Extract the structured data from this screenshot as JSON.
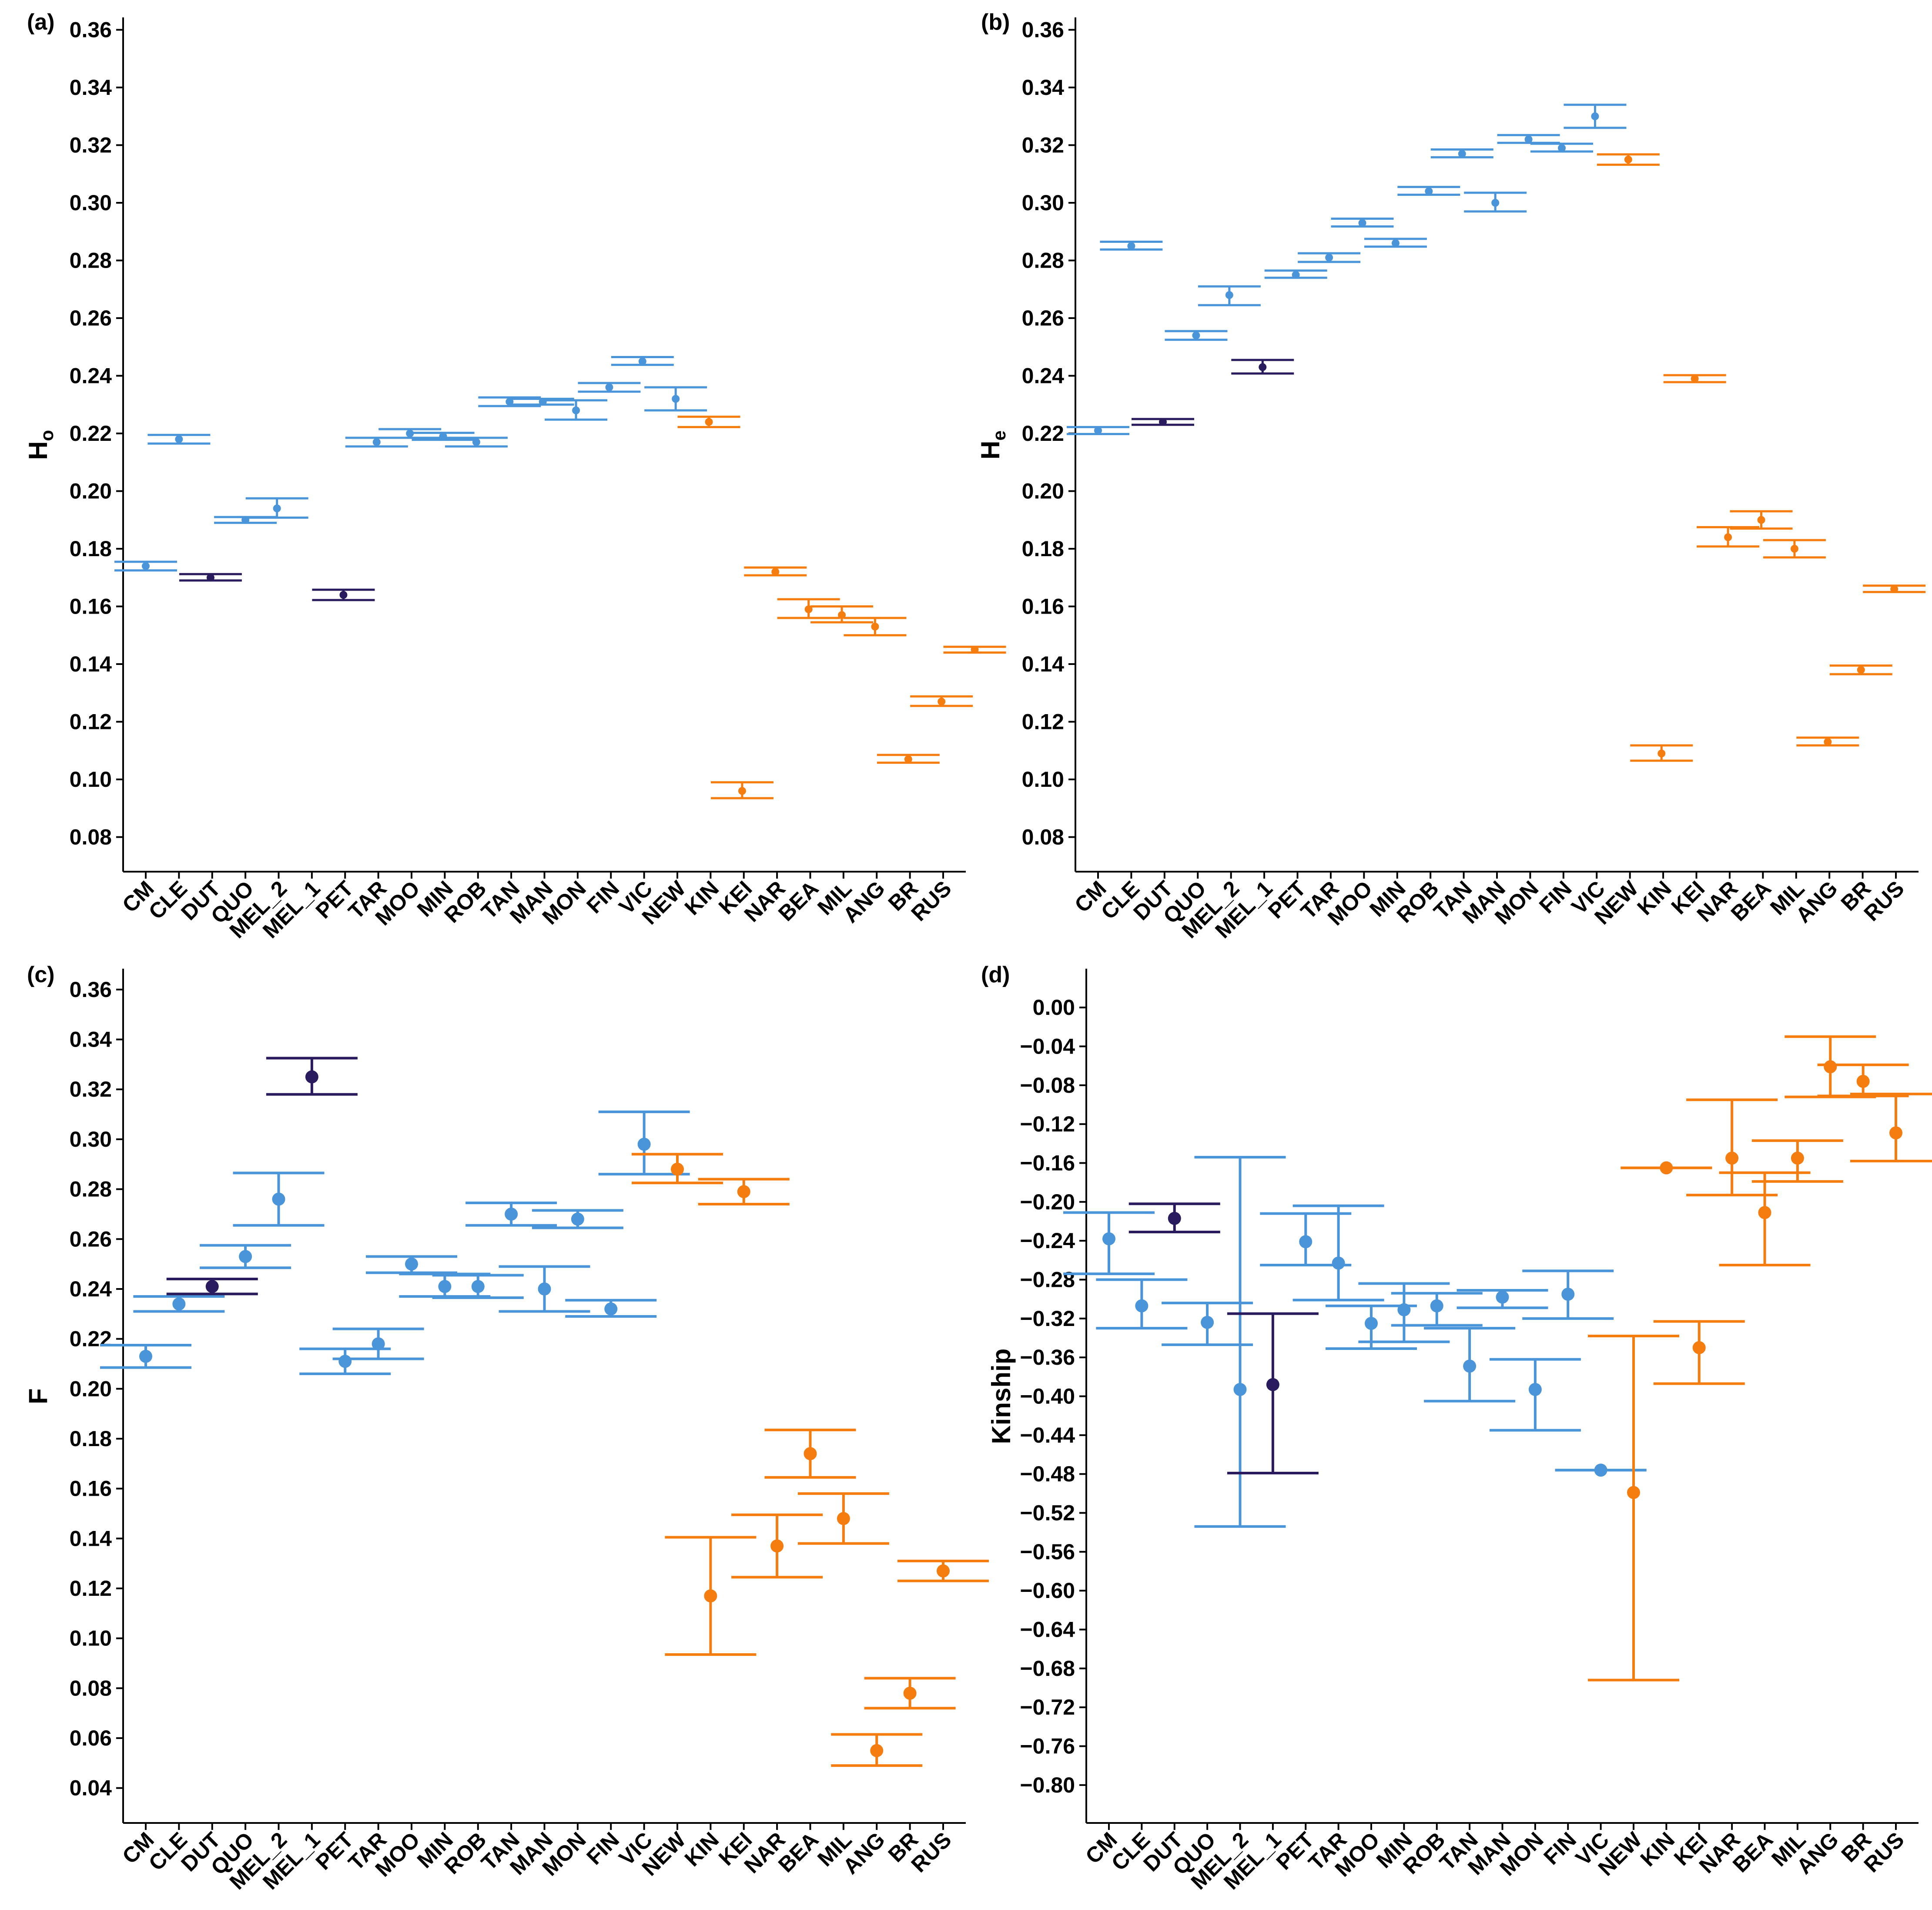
{
  "colors": {
    "blue": "#4a95d9",
    "navy": "#2a1a5e",
    "orange": "#f57c0f",
    "axis": "#000000"
  },
  "chart_data": [
    {
      "type": "scatter",
      "panel_label": "(a)",
      "ylabel": "H",
      "ylabel_sub": "o",
      "ylim": [
        0.068,
        0.364
      ],
      "yticks": [
        0.08,
        0.1,
        0.12,
        0.14,
        0.16,
        0.18,
        0.2,
        0.22,
        0.24,
        0.26,
        0.28,
        0.3,
        0.32,
        0.34,
        0.36
      ],
      "tick_format": "%.2f",
      "marker": "small",
      "categories": [
        "CM",
        "CLE",
        "DUT",
        "QUO",
        "MEL_2",
        "MEL_1",
        "PET",
        "TAR",
        "MOO",
        "MIN",
        "ROB",
        "TAN",
        "MAN",
        "MON",
        "FIN",
        "VIC",
        "NEW",
        "KIN",
        "KEI",
        "NAR",
        "BEA",
        "MIL",
        "ANG",
        "BR",
        "RUS"
      ],
      "series": [
        {
          "x": 0.0,
          "y": 0.174,
          "lo": 0.1725,
          "hi": 0.1755,
          "group": "blue"
        },
        {
          "x": 1.0,
          "y": 0.218,
          "lo": 0.2165,
          "hi": 0.2195,
          "group": "blue"
        },
        {
          "x": 1.95,
          "y": 0.17,
          "lo": 0.169,
          "hi": 0.1712,
          "group": "navy"
        },
        {
          "x": 3.0,
          "y": 0.19,
          "lo": 0.189,
          "hi": 0.191,
          "group": "blue"
        },
        {
          "x": 3.95,
          "y": 0.194,
          "lo": 0.1908,
          "hi": 0.1975,
          "group": "blue"
        },
        {
          "x": 5.95,
          "y": 0.164,
          "lo": 0.1622,
          "hi": 0.1658,
          "group": "navy"
        },
        {
          "x": 6.95,
          "y": 0.217,
          "lo": 0.2155,
          "hi": 0.2185,
          "group": "blue"
        },
        {
          "x": 7.95,
          "y": 0.22,
          "lo": 0.2185,
          "hi": 0.2215,
          "group": "blue"
        },
        {
          "x": 8.95,
          "y": 0.219,
          "lo": 0.2178,
          "hi": 0.2202,
          "group": "blue"
        },
        {
          "x": 9.95,
          "y": 0.217,
          "lo": 0.2155,
          "hi": 0.2185,
          "group": "blue"
        },
        {
          "x": 10.95,
          "y": 0.231,
          "lo": 0.2295,
          "hi": 0.2325,
          "group": "blue"
        },
        {
          "x": 11.95,
          "y": 0.231,
          "lo": 0.23,
          "hi": 0.232,
          "group": "blue"
        },
        {
          "x": 12.95,
          "y": 0.228,
          "lo": 0.2248,
          "hi": 0.2315,
          "group": "blue"
        },
        {
          "x": 13.95,
          "y": 0.236,
          "lo": 0.2345,
          "hi": 0.2375,
          "group": "blue"
        },
        {
          "x": 14.95,
          "y": 0.245,
          "lo": 0.2438,
          "hi": 0.2465,
          "group": "blue"
        },
        {
          "x": 15.95,
          "y": 0.232,
          "lo": 0.228,
          "hi": 0.236,
          "group": "blue"
        },
        {
          "x": 16.95,
          "y": 0.224,
          "lo": 0.2222,
          "hi": 0.2258,
          "group": "orange"
        },
        {
          "x": 17.95,
          "y": 0.096,
          "lo": 0.0935,
          "hi": 0.099,
          "group": "orange"
        },
        {
          "x": 18.95,
          "y": 0.172,
          "lo": 0.1708,
          "hi": 0.1735,
          "group": "orange"
        },
        {
          "x": 19.95,
          "y": 0.159,
          "lo": 0.156,
          "hi": 0.1625,
          "group": "orange"
        },
        {
          "x": 20.95,
          "y": 0.157,
          "lo": 0.1545,
          "hi": 0.16,
          "group": "orange"
        },
        {
          "x": 21.95,
          "y": 0.153,
          "lo": 0.15,
          "hi": 0.156,
          "group": "orange"
        },
        {
          "x": 22.95,
          "y": 0.107,
          "lo": 0.1058,
          "hi": 0.1085,
          "group": "orange"
        },
        {
          "x": 23.95,
          "y": 0.127,
          "lo": 0.1255,
          "hi": 0.1288,
          "group": "orange"
        },
        {
          "x": 24.95,
          "y": 0.145,
          "lo": 0.144,
          "hi": 0.146,
          "group": "orange"
        }
      ]
    },
    {
      "type": "scatter",
      "panel_label": "(b)",
      "ylabel": "H",
      "ylabel_sub": "e",
      "ylim": [
        0.068,
        0.364
      ],
      "yticks": [
        0.08,
        0.1,
        0.12,
        0.14,
        0.16,
        0.18,
        0.2,
        0.22,
        0.24,
        0.26,
        0.28,
        0.3,
        0.32,
        0.34,
        0.36
      ],
      "tick_format": "%.2f",
      "marker": "small",
      "categories": [
        "CM",
        "CLE",
        "DUT",
        "QUO",
        "MEL_2",
        "MEL_1",
        "PET",
        "TAR",
        "MOO",
        "MIN",
        "ROB",
        "TAN",
        "MAN",
        "MON",
        "FIN",
        "VIC",
        "NEW",
        "KIN",
        "KEI",
        "NAR",
        "BEA",
        "MIL",
        "ANG",
        "BR",
        "RUS"
      ],
      "series": [
        {
          "x": 0.0,
          "y": 0.221,
          "lo": 0.2198,
          "hi": 0.2222,
          "group": "blue"
        },
        {
          "x": 1.0,
          "y": 0.285,
          "lo": 0.2838,
          "hi": 0.2865,
          "group": "blue"
        },
        {
          "x": 1.95,
          "y": 0.224,
          "lo": 0.223,
          "hi": 0.225,
          "group": "navy"
        },
        {
          "x": 2.95,
          "y": 0.254,
          "lo": 0.2525,
          "hi": 0.2555,
          "group": "blue"
        },
        {
          "x": 3.95,
          "y": 0.268,
          "lo": 0.2645,
          "hi": 0.271,
          "group": "blue"
        },
        {
          "x": 4.95,
          "y": 0.243,
          "lo": 0.2408,
          "hi": 0.2455,
          "group": "navy"
        },
        {
          "x": 5.95,
          "y": 0.275,
          "lo": 0.274,
          "hi": 0.2765,
          "group": "blue"
        },
        {
          "x": 6.95,
          "y": 0.281,
          "lo": 0.2795,
          "hi": 0.2825,
          "group": "blue"
        },
        {
          "x": 7.95,
          "y": 0.293,
          "lo": 0.2918,
          "hi": 0.2945,
          "group": "blue"
        },
        {
          "x": 8.95,
          "y": 0.286,
          "lo": 0.2848,
          "hi": 0.2875,
          "group": "blue"
        },
        {
          "x": 9.95,
          "y": 0.304,
          "lo": 0.3028,
          "hi": 0.3055,
          "group": "blue"
        },
        {
          "x": 10.95,
          "y": 0.317,
          "lo": 0.3158,
          "hi": 0.3185,
          "group": "blue"
        },
        {
          "x": 11.95,
          "y": 0.3,
          "lo": 0.297,
          "hi": 0.3035,
          "group": "blue"
        },
        {
          "x": 12.95,
          "y": 0.322,
          "lo": 0.3208,
          "hi": 0.3235,
          "group": "blue"
        },
        {
          "x": 13.95,
          "y": 0.319,
          "lo": 0.3178,
          "hi": 0.3205,
          "group": "blue"
        },
        {
          "x": 14.95,
          "y": 0.33,
          "lo": 0.326,
          "hi": 0.334,
          "group": "blue"
        },
        {
          "x": 15.95,
          "y": 0.315,
          "lo": 0.3132,
          "hi": 0.3168,
          "group": "orange"
        },
        {
          "x": 16.95,
          "y": 0.109,
          "lo": 0.1065,
          "hi": 0.1118,
          "group": "orange"
        },
        {
          "x": 17.95,
          "y": 0.239,
          "lo": 0.2378,
          "hi": 0.2402,
          "group": "orange"
        },
        {
          "x": 18.95,
          "y": 0.184,
          "lo": 0.1808,
          "hi": 0.1875,
          "group": "orange"
        },
        {
          "x": 19.95,
          "y": 0.19,
          "lo": 0.187,
          "hi": 0.193,
          "group": "orange"
        },
        {
          "x": 20.95,
          "y": 0.18,
          "lo": 0.177,
          "hi": 0.183,
          "group": "orange"
        },
        {
          "x": 21.95,
          "y": 0.113,
          "lo": 0.1118,
          "hi": 0.1145,
          "group": "orange"
        },
        {
          "x": 22.95,
          "y": 0.138,
          "lo": 0.1365,
          "hi": 0.1395,
          "group": "orange"
        },
        {
          "x": 23.95,
          "y": 0.166,
          "lo": 0.165,
          "hi": 0.1672,
          "group": "orange"
        }
      ]
    },
    {
      "type": "scatter",
      "panel_label": "(c)",
      "ylabel": "F",
      "ylabel_sub": "",
      "ylim": [
        0.026,
        0.368
      ],
      "yticks": [
        0.04,
        0.06,
        0.08,
        0.1,
        0.12,
        0.14,
        0.16,
        0.18,
        0.2,
        0.22,
        0.24,
        0.26,
        0.28,
        0.3,
        0.32,
        0.34,
        0.36
      ],
      "tick_format": "%.2f",
      "marker": "large",
      "categories": [
        "CM",
        "CLE",
        "DUT",
        "QUO",
        "MEL_2",
        "MEL_1",
        "PET",
        "TAR",
        "MOO",
        "MIN",
        "ROB",
        "TAN",
        "MAN",
        "MON",
        "FIN",
        "VIC",
        "NEW",
        "KIN",
        "KEI",
        "NAR",
        "BEA",
        "MIL",
        "ANG",
        "BR",
        "RUS"
      ],
      "series": [
        {
          "x": 0.0,
          "y": 0.213,
          "lo": 0.2085,
          "hi": 0.2175,
          "group": "blue"
        },
        {
          "x": 1.0,
          "y": 0.234,
          "lo": 0.231,
          "hi": 0.237,
          "group": "blue"
        },
        {
          "x": 2.0,
          "y": 0.241,
          "lo": 0.238,
          "hi": 0.244,
          "group": "navy"
        },
        {
          "x": 3.0,
          "y": 0.253,
          "lo": 0.2485,
          "hi": 0.2575,
          "group": "blue"
        },
        {
          "x": 4.0,
          "y": 0.276,
          "lo": 0.2655,
          "hi": 0.2865,
          "group": "blue"
        },
        {
          "x": 5.0,
          "y": 0.325,
          "lo": 0.318,
          "hi": 0.3325,
          "group": "navy"
        },
        {
          "x": 6.0,
          "y": 0.211,
          "lo": 0.206,
          "hi": 0.216,
          "group": "blue"
        },
        {
          "x": 7.0,
          "y": 0.218,
          "lo": 0.212,
          "hi": 0.224,
          "group": "blue"
        },
        {
          "x": 8.0,
          "y": 0.25,
          "lo": 0.2465,
          "hi": 0.253,
          "group": "blue"
        },
        {
          "x": 9.0,
          "y": 0.241,
          "lo": 0.237,
          "hi": 0.246,
          "group": "blue"
        },
        {
          "x": 10.0,
          "y": 0.241,
          "lo": 0.2365,
          "hi": 0.2455,
          "group": "blue"
        },
        {
          "x": 11.0,
          "y": 0.27,
          "lo": 0.2655,
          "hi": 0.2745,
          "group": "blue"
        },
        {
          "x": 12.0,
          "y": 0.24,
          "lo": 0.231,
          "hi": 0.249,
          "group": "blue"
        },
        {
          "x": 13.0,
          "y": 0.268,
          "lo": 0.2645,
          "hi": 0.2715,
          "group": "blue"
        },
        {
          "x": 14.0,
          "y": 0.232,
          "lo": 0.229,
          "hi": 0.2355,
          "group": "blue"
        },
        {
          "x": 15.0,
          "y": 0.298,
          "lo": 0.286,
          "hi": 0.311,
          "group": "blue"
        },
        {
          "x": 16.0,
          "y": 0.288,
          "lo": 0.2825,
          "hi": 0.294,
          "group": "orange"
        },
        {
          "x": 17.0,
          "y": 0.117,
          "lo": 0.0935,
          "hi": 0.1405,
          "group": "orange"
        },
        {
          "x": 18.0,
          "y": 0.279,
          "lo": 0.274,
          "hi": 0.284,
          "group": "orange"
        },
        {
          "x": 19.0,
          "y": 0.137,
          "lo": 0.1245,
          "hi": 0.1495,
          "group": "orange"
        },
        {
          "x": 20.0,
          "y": 0.174,
          "lo": 0.1645,
          "hi": 0.1835,
          "group": "orange"
        },
        {
          "x": 21.0,
          "y": 0.148,
          "lo": 0.138,
          "hi": 0.158,
          "group": "orange"
        },
        {
          "x": 22.0,
          "y": 0.055,
          "lo": 0.049,
          "hi": 0.0615,
          "group": "orange"
        },
        {
          "x": 23.0,
          "y": 0.078,
          "lo": 0.072,
          "hi": 0.084,
          "group": "orange"
        },
        {
          "x": 24.0,
          "y": 0.127,
          "lo": 0.123,
          "hi": 0.131,
          "group": "orange"
        }
      ]
    },
    {
      "type": "scatter",
      "panel_label": "(d)",
      "ylabel": "Kinship",
      "ylabel_sub": "",
      "ylim": [
        -0.839,
        0.039
      ],
      "yticks": [
        0.0,
        -0.04,
        -0.08,
        -0.12,
        -0.16,
        -0.2,
        -0.24,
        -0.28,
        -0.32,
        -0.36,
        -0.4,
        -0.44,
        -0.48,
        -0.52,
        -0.56,
        -0.6,
        -0.64,
        -0.68,
        -0.72,
        -0.76,
        -0.8
      ],
      "tick_format": "%.2f",
      "marker": "large",
      "categories": [
        "CM",
        "CLE",
        "DUT",
        "QUO",
        "MEL_2",
        "MEL_1",
        "PET",
        "TAR",
        "MOO",
        "MIN",
        "ROB",
        "TAN",
        "MAN",
        "MON",
        "FIN",
        "VIC",
        "NEW",
        "KIN",
        "KEI",
        "NAR",
        "BEA",
        "MIL",
        "ANG",
        "BR",
        "RUS"
      ],
      "series": [
        {
          "x": 0.0,
          "y": -0.238,
          "lo": -0.274,
          "hi": -0.211,
          "group": "blue"
        },
        {
          "x": 1.0,
          "y": -0.307,
          "lo": -0.33,
          "hi": -0.28,
          "group": "blue"
        },
        {
          "x": 2.0,
          "y": -0.217,
          "lo": -0.231,
          "hi": -0.202,
          "group": "navy"
        },
        {
          "x": 3.0,
          "y": -0.324,
          "lo": -0.347,
          "hi": -0.304,
          "group": "blue"
        },
        {
          "x": 4.0,
          "y": -0.393,
          "lo": -0.534,
          "hi": -0.154,
          "group": "blue"
        },
        {
          "x": 5.0,
          "y": -0.388,
          "lo": -0.479,
          "hi": -0.315,
          "group": "navy"
        },
        {
          "x": 6.0,
          "y": -0.241,
          "lo": -0.265,
          "hi": -0.212,
          "group": "blue"
        },
        {
          "x": 7.0,
          "y": -0.263,
          "lo": -0.301,
          "hi": -0.204,
          "group": "blue"
        },
        {
          "x": 8.0,
          "y": -0.325,
          "lo": -0.351,
          "hi": -0.307,
          "group": "blue"
        },
        {
          "x": 9.0,
          "y": -0.311,
          "lo": -0.344,
          "hi": -0.284,
          "group": "blue"
        },
        {
          "x": 10.0,
          "y": -0.307,
          "lo": -0.327,
          "hi": -0.294,
          "group": "blue"
        },
        {
          "x": 11.0,
          "y": -0.369,
          "lo": -0.405,
          "hi": -0.33,
          "group": "blue"
        },
        {
          "x": 12.0,
          "y": -0.298,
          "lo": -0.309,
          "hi": -0.291,
          "group": "blue"
        },
        {
          "x": 13.0,
          "y": -0.393,
          "lo": -0.435,
          "hi": -0.362,
          "group": "blue"
        },
        {
          "x": 14.0,
          "y": -0.295,
          "lo": -0.32,
          "hi": -0.271,
          "group": "blue"
        },
        {
          "x": 15.0,
          "y": -0.476,
          "lo": -0.476,
          "hi": -0.476,
          "group": "blue"
        },
        {
          "x": 16.0,
          "y": -0.499,
          "lo": -0.692,
          "hi": -0.338,
          "group": "orange"
        },
        {
          "x": 17.0,
          "y": -0.165,
          "lo": -0.165,
          "hi": -0.165,
          "group": "orange"
        },
        {
          "x": 18.0,
          "y": -0.35,
          "lo": -0.387,
          "hi": -0.323,
          "group": "orange"
        },
        {
          "x": 19.0,
          "y": -0.155,
          "lo": -0.193,
          "hi": -0.095,
          "group": "orange"
        },
        {
          "x": 20.0,
          "y": -0.211,
          "lo": -0.265,
          "hi": -0.17,
          "group": "orange"
        },
        {
          "x": 21.0,
          "y": -0.155,
          "lo": -0.179,
          "hi": -0.137,
          "group": "orange"
        },
        {
          "x": 22.0,
          "y": -0.061,
          "lo": -0.092,
          "hi": -0.03,
          "group": "orange"
        },
        {
          "x": 23.0,
          "y": -0.076,
          "lo": -0.091,
          "hi": -0.059,
          "group": "orange"
        },
        {
          "x": 24.0,
          "y": -0.129,
          "lo": -0.158,
          "hi": -0.089,
          "group": "orange"
        }
      ]
    }
  ]
}
